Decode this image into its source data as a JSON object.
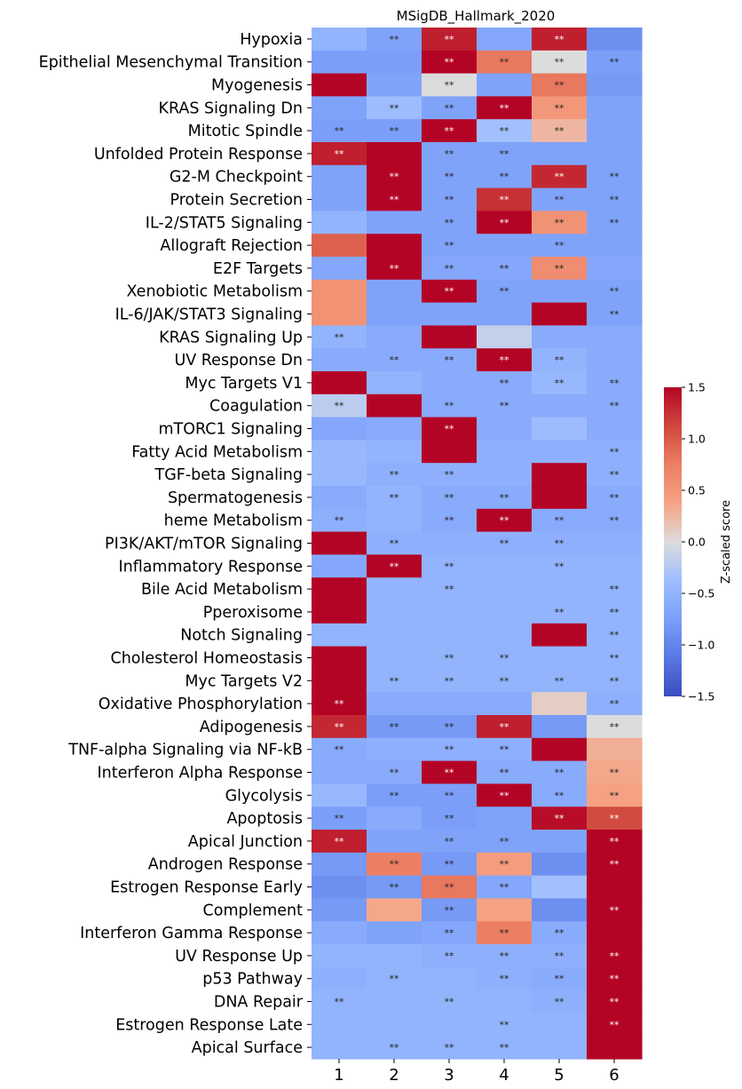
{
  "chart_data": {
    "type": "heatmap",
    "title": "MSigDB_Hallmark_2020",
    "columns": [
      "1",
      "2",
      "3",
      "4",
      "5",
      "6"
    ],
    "rows": [
      "Hypoxia",
      "Epithelial Mesenchymal Transition",
      "Myogenesis",
      "KRAS Signaling Dn",
      "Mitotic Spindle",
      "Unfolded Protein Response",
      "G2-M Checkpoint",
      "Protein Secretion",
      "IL-2/STAT5 Signaling",
      "Allograft Rejection",
      "E2F Targets",
      "Xenobiotic Metabolism",
      "IL-6/JAK/STAT3 Signaling",
      "KRAS Signaling Up",
      "UV Response Dn",
      "Myc Targets V1",
      "Coagulation",
      "mTORC1 Signaling",
      "Fatty Acid Metabolism",
      "TGF-beta Signaling",
      "Spermatogenesis",
      "heme Metabolism",
      "PI3K/AKT/mTOR  Signaling",
      "Inflammatory Response",
      "Bile Acid Metabolism",
      "Pperoxisome",
      "Notch Signaling",
      "Cholesterol Homeostasis",
      "Myc Targets V2",
      "Oxidative Phosphorylation",
      "Adipogenesis",
      "TNF-alpha Signaling via NF-kB",
      "Interferon Alpha Response",
      "Glycolysis",
      "Apoptosis",
      "Apical Junction",
      "Androgen Response",
      "Estrogen Response Early",
      "Complement",
      "Interferon Gamma Response",
      "UV Response Up",
      "p53 Pathway",
      "DNA Repair",
      "Estrogen Response Late",
      "Apical Surface"
    ],
    "values": [
      [
        -0.5,
        -0.7,
        1.35,
        -0.65,
        1.35,
        -0.9
      ],
      [
        -0.75,
        -0.75,
        1.5,
        0.8,
        0.0,
        -0.75
      ],
      [
        1.5,
        -0.7,
        0.0,
        -0.7,
        0.8,
        -0.8
      ],
      [
        -0.7,
        -0.4,
        -0.7,
        1.5,
        0.5,
        -0.7
      ],
      [
        -0.75,
        -0.75,
        1.5,
        -0.35,
        0.25,
        -0.7
      ],
      [
        1.35,
        1.5,
        -0.7,
        -0.7,
        -0.7,
        -0.7
      ],
      [
        -0.7,
        1.5,
        -0.7,
        -0.7,
        1.3,
        -0.7
      ],
      [
        -0.7,
        1.5,
        -0.7,
        1.25,
        -0.7,
        -0.7
      ],
      [
        -0.5,
        -0.7,
        -0.7,
        1.5,
        0.55,
        -0.7
      ],
      [
        0.95,
        1.5,
        -0.7,
        -0.7,
        -0.7,
        -0.7
      ],
      [
        -0.65,
        1.5,
        -0.65,
        -0.65,
        0.6,
        -0.65
      ],
      [
        0.55,
        -0.7,
        1.5,
        -0.7,
        -0.7,
        -0.7
      ],
      [
        0.55,
        -0.7,
        -0.7,
        -0.7,
        1.5,
        -0.7
      ],
      [
        -0.5,
        -0.6,
        1.5,
        -0.15,
        -0.6,
        -0.6
      ],
      [
        -0.6,
        -0.6,
        -0.6,
        1.5,
        -0.5,
        -0.6
      ],
      [
        1.5,
        -0.5,
        -0.6,
        -0.6,
        -0.45,
        -0.6
      ],
      [
        -0.2,
        1.5,
        -0.6,
        -0.6,
        -0.6,
        -0.6
      ],
      [
        -0.65,
        -0.6,
        1.5,
        -0.6,
        -0.4,
        -0.6
      ],
      [
        -0.45,
        -0.5,
        1.5,
        -0.55,
        -0.55,
        -0.55
      ],
      [
        -0.45,
        -0.55,
        -0.55,
        -0.55,
        1.5,
        -0.55
      ],
      [
        -0.6,
        -0.5,
        -0.6,
        -0.6,
        1.5,
        -0.6
      ],
      [
        -0.55,
        -0.5,
        -0.6,
        1.5,
        -0.6,
        -0.6
      ],
      [
        1.5,
        -0.55,
        -0.55,
        -0.55,
        -0.55,
        -0.55
      ],
      [
        -0.65,
        1.5,
        -0.5,
        -0.5,
        -0.5,
        -0.5
      ],
      [
        1.5,
        -0.5,
        -0.5,
        -0.5,
        -0.5,
        -0.5
      ],
      [
        1.5,
        -0.5,
        -0.5,
        -0.5,
        -0.5,
        -0.5
      ],
      [
        -0.5,
        -0.5,
        -0.5,
        -0.5,
        1.5,
        -0.5
      ],
      [
        1.5,
        -0.5,
        -0.5,
        -0.5,
        -0.5,
        -0.5
      ],
      [
        1.5,
        -0.5,
        -0.5,
        -0.5,
        -0.5,
        -0.5
      ],
      [
        1.5,
        -0.6,
        -0.6,
        -0.6,
        0.1,
        -0.55
      ],
      [
        1.3,
        -0.8,
        -0.8,
        1.35,
        -0.8,
        0.0
      ],
      [
        -0.6,
        -0.55,
        -0.55,
        -0.55,
        1.5,
        0.3
      ],
      [
        -0.6,
        -0.6,
        1.5,
        -0.6,
        -0.6,
        0.35
      ],
      [
        -0.45,
        -0.75,
        -0.75,
        1.5,
        -0.6,
        0.4
      ],
      [
        -0.75,
        -0.6,
        -0.75,
        -0.7,
        1.45,
        1.1
      ],
      [
        1.35,
        -0.7,
        -0.7,
        -0.7,
        -0.7,
        1.5
      ],
      [
        -0.8,
        0.75,
        -0.8,
        0.45,
        -0.9,
        1.5
      ],
      [
        -0.9,
        -0.8,
        0.8,
        -0.65,
        -0.35,
        1.5
      ],
      [
        -0.8,
        0.35,
        -0.8,
        0.4,
        -0.9,
        1.5
      ],
      [
        -0.6,
        -0.7,
        -0.65,
        0.75,
        -0.6,
        1.5
      ],
      [
        -0.5,
        -0.5,
        -0.55,
        -0.55,
        -0.55,
        1.5
      ],
      [
        -0.55,
        -0.5,
        -0.5,
        -0.55,
        -0.6,
        1.5
      ],
      [
        -0.5,
        -0.5,
        -0.5,
        -0.5,
        -0.55,
        1.5
      ],
      [
        -0.5,
        -0.5,
        -0.5,
        -0.5,
        -0.5,
        1.5
      ],
      [
        -0.5,
        -0.5,
        -0.5,
        -0.5,
        -0.5,
        1.5
      ]
    ],
    "annotations": [
      [
        "",
        "**",
        "**",
        "",
        "**",
        ""
      ],
      [
        "",
        "",
        "**",
        "**",
        "**",
        "**"
      ],
      [
        "",
        "",
        "**",
        "",
        "**",
        ""
      ],
      [
        "",
        "**",
        "**",
        "**",
        "**",
        ""
      ],
      [
        "**",
        "**",
        "**",
        "**",
        "**",
        ""
      ],
      [
        "**",
        "",
        "**",
        "**",
        "",
        ""
      ],
      [
        "",
        "**",
        "**",
        "**",
        "**",
        "**"
      ],
      [
        "",
        "**",
        "**",
        "**",
        "**",
        "**"
      ],
      [
        "",
        "",
        "**",
        "**",
        "**",
        "**"
      ],
      [
        "",
        "",
        "**",
        "",
        "**",
        ""
      ],
      [
        "",
        "**",
        "**",
        "**",
        "**",
        ""
      ],
      [
        "",
        "",
        "**",
        "**",
        "",
        "**"
      ],
      [
        "",
        "",
        "",
        "",
        "",
        "**"
      ],
      [
        "**",
        "",
        "",
        "",
        "",
        ""
      ],
      [
        "",
        "**",
        "**",
        "**",
        "**",
        ""
      ],
      [
        "",
        "",
        "",
        "**",
        "**",
        "**"
      ],
      [
        "**",
        "",
        "**",
        "**",
        "",
        "**"
      ],
      [
        "",
        "",
        "**",
        "",
        "",
        ""
      ],
      [
        "",
        "",
        "",
        "",
        "",
        "**"
      ],
      [
        "",
        "**",
        "**",
        "",
        "",
        "**"
      ],
      [
        "",
        "**",
        "**",
        "**",
        "",
        "**"
      ],
      [
        "**",
        "",
        "**",
        "**",
        "**",
        "**"
      ],
      [
        "",
        "**",
        "",
        "**",
        "**",
        ""
      ],
      [
        "",
        "**",
        "**",
        "",
        "**",
        ""
      ],
      [
        "",
        "",
        "**",
        "",
        "",
        "**"
      ],
      [
        "",
        "",
        "",
        "",
        "**",
        "**"
      ],
      [
        "",
        "",
        "",
        "",
        "",
        "**"
      ],
      [
        "",
        "",
        "**",
        "**",
        "",
        "**"
      ],
      [
        "",
        "**",
        "**",
        "**",
        "**",
        "**"
      ],
      [
        "**",
        "",
        "",
        "",
        "",
        "**"
      ],
      [
        "**",
        "**",
        "**",
        "**",
        "",
        "**"
      ],
      [
        "**",
        "",
        "**",
        "**",
        "",
        ""
      ],
      [
        "",
        "**",
        "**",
        "**",
        "**",
        "**"
      ],
      [
        "",
        "**",
        "**",
        "**",
        "**",
        "**"
      ],
      [
        "**",
        "",
        "**",
        "",
        "**",
        "**"
      ],
      [
        "**",
        "",
        "**",
        "**",
        "",
        "**"
      ],
      [
        "",
        "**",
        "**",
        "**",
        "",
        "**"
      ],
      [
        "",
        "**",
        "**",
        "**",
        "",
        ""
      ],
      [
        "",
        "",
        "**",
        "",
        "",
        "**"
      ],
      [
        "",
        "",
        "**",
        "**",
        "**",
        ""
      ],
      [
        "",
        "",
        "**",
        "**",
        "**",
        "**"
      ],
      [
        "",
        "**",
        "",
        "**",
        "**",
        "**"
      ],
      [
        "**",
        "",
        "**",
        "",
        "**",
        "**"
      ],
      [
        "",
        "",
        "",
        "**",
        "",
        "**"
      ],
      [
        "",
        "**",
        "**",
        "**",
        "",
        ""
      ]
    ],
    "colormap": "coolwarm",
    "vmin": -1.5,
    "vmax": 1.5,
    "colorbar": {
      "label": "Z-scaled score",
      "ticks": [
        1.5,
        1.0,
        0.5,
        0.0,
        -0.5,
        -1.0,
        -1.5
      ],
      "tick_labels": [
        "1.5",
        "1.0",
        "0.5",
        "0.0",
        "−0.5",
        "−1.0",
        "−1.5"
      ]
    },
    "legend": "none",
    "grid": false
  }
}
